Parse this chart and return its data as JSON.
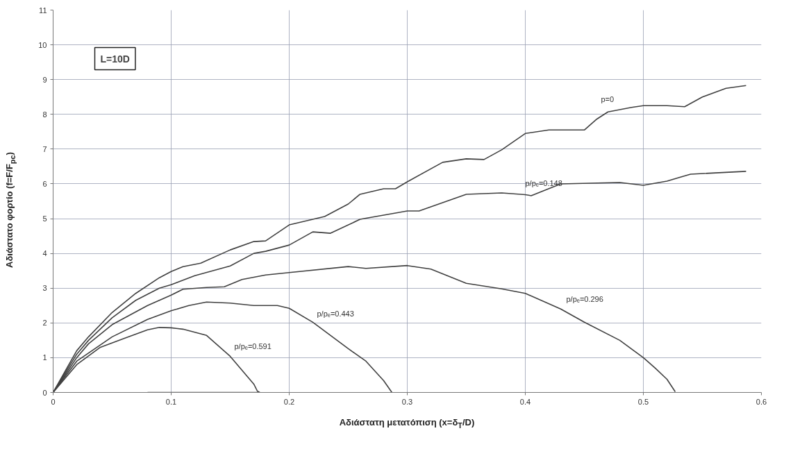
{
  "chart_data": {
    "type": "line",
    "xlabel": "Αδιάστατη μετατόπιση (x=δ$_{T}$/D)",
    "ylabel": "Αδιάστατο φορτίο (f=F/F$_{pc}$)",
    "annotations": [
      "L=10D"
    ],
    "xlim": [
      0,
      0.6
    ],
    "ylim": [
      0,
      11
    ],
    "xticks": [
      0,
      0.1,
      0.2,
      0.3,
      0.4,
      0.5,
      0.6
    ],
    "yticks": [
      0,
      1,
      2,
      3,
      4,
      5,
      6,
      7,
      8,
      9,
      10,
      11
    ],
    "grid": true,
    "marker": "none",
    "line_style": "solid",
    "series": [
      {
        "name": "p=0",
        "color": "#404040",
        "x": [
          0,
          0.01,
          0.02,
          0.03,
          0.05,
          0.07,
          0.09,
          0.1,
          0.11,
          0.125,
          0.15,
          0.17,
          0.18,
          0.2,
          0.23,
          0.25,
          0.26,
          0.28,
          0.29,
          0.3,
          0.33,
          0.35,
          0.365,
          0.38,
          0.4,
          0.42,
          0.45,
          0.46,
          0.47,
          0.49,
          0.5,
          0.52,
          0.535,
          0.55,
          0.57,
          0.587
        ],
        "values": [
          0,
          0.6,
          1.2,
          1.6,
          2.3,
          2.85,
          3.3,
          3.48,
          3.62,
          3.72,
          4.1,
          4.34,
          4.36,
          4.82,
          5.06,
          5.42,
          5.7,
          5.86,
          5.86,
          6.06,
          6.62,
          6.72,
          6.7,
          6.98,
          7.45,
          7.55,
          7.55,
          7.85,
          8.07,
          8.2,
          8.25,
          8.25,
          8.22,
          8.5,
          8.75,
          8.83
        ]
      },
      {
        "name": "p/pₑ=0.148",
        "color": "#404040",
        "x": [
          0,
          0.01,
          0.02,
          0.03,
          0.05,
          0.07,
          0.09,
          0.1,
          0.12,
          0.15,
          0.17,
          0.18,
          0.2,
          0.22,
          0.235,
          0.26,
          0.3,
          0.31,
          0.35,
          0.38,
          0.4,
          0.405,
          0.43,
          0.48,
          0.5,
          0.52,
          0.54,
          0.587
        ],
        "values": [
          0,
          0.55,
          1.1,
          1.5,
          2.15,
          2.65,
          3.0,
          3.1,
          3.36,
          3.64,
          4.0,
          4.06,
          4.24,
          4.62,
          4.58,
          4.98,
          5.22,
          5.22,
          5.7,
          5.74,
          5.69,
          5.66,
          6.0,
          6.04,
          5.96,
          6.08,
          6.28,
          6.36
        ]
      },
      {
        "name": "p/pₑ=0.296",
        "color": "#404040",
        "x": [
          0,
          0.01,
          0.02,
          0.03,
          0.05,
          0.08,
          0.1,
          0.11,
          0.13,
          0.145,
          0.16,
          0.18,
          0.2,
          0.25,
          0.265,
          0.3,
          0.32,
          0.35,
          0.38,
          0.4,
          0.43,
          0.45,
          0.48,
          0.5,
          0.51,
          0.52,
          0.527
        ],
        "values": [
          0,
          0.5,
          1.0,
          1.4,
          1.95,
          2.5,
          2.8,
          2.97,
          3.02,
          3.04,
          3.25,
          3.38,
          3.45,
          3.62,
          3.57,
          3.65,
          3.55,
          3.14,
          2.98,
          2.85,
          2.4,
          2.02,
          1.5,
          1.0,
          0.7,
          0.38,
          0.02
        ]
      },
      {
        "name": "p/pₑ=0.443",
        "color": "#404040",
        "x": [
          0,
          0.01,
          0.02,
          0.05,
          0.08,
          0.1,
          0.115,
          0.13,
          0.15,
          0.17,
          0.19,
          0.2,
          0.22,
          0.25,
          0.265,
          0.28,
          0.287
        ],
        "values": [
          0,
          0.45,
          0.9,
          1.6,
          2.1,
          2.35,
          2.5,
          2.6,
          2.57,
          2.5,
          2.5,
          2.42,
          2.02,
          1.26,
          0.9,
          0.34,
          0
        ]
      },
      {
        "name": "p/pₑ=0.591",
        "color": "#404040",
        "x": [
          0,
          0.01,
          0.02,
          0.04,
          0.06,
          0.08,
          0.09,
          0.1,
          0.11,
          0.13,
          0.15,
          0.17,
          0.173,
          0.175,
          0.08
        ],
        "values": [
          0,
          0.4,
          0.8,
          1.3,
          1.55,
          1.8,
          1.87,
          1.86,
          1.82,
          1.64,
          1.04,
          0.24,
          0.04,
          0,
          0
        ]
      }
    ]
  }
}
